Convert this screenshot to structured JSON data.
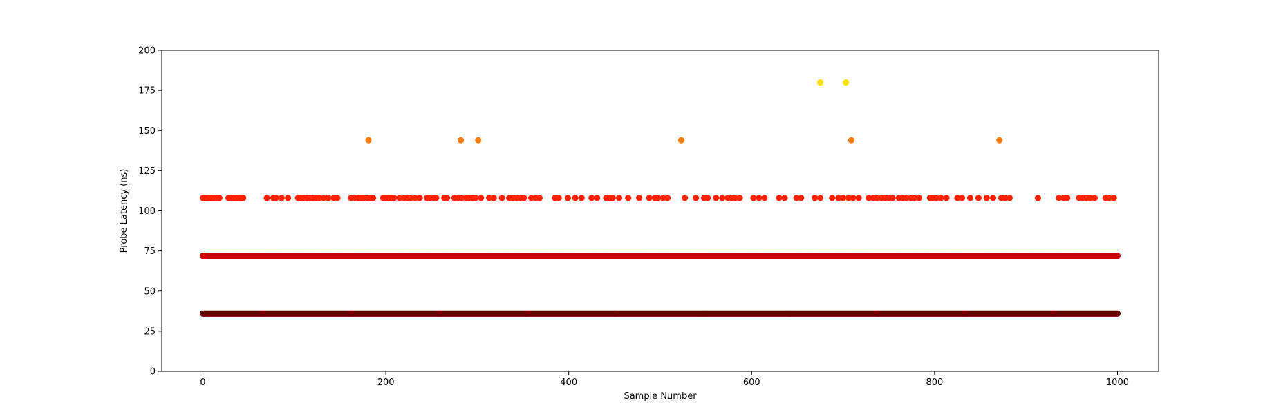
{
  "chart_data": {
    "type": "scatter",
    "title": "",
    "xlabel": "Sample Number",
    "ylabel": "Probe Latency (ns)",
    "xlim": [
      -45,
      1045
    ],
    "ylim": [
      0,
      200
    ],
    "xticks": [
      0,
      200,
      400,
      600,
      800,
      1000
    ],
    "yticks": [
      0,
      25,
      50,
      75,
      100,
      125,
      150,
      175,
      200
    ],
    "grid": false,
    "legend": "none",
    "series": [
      {
        "level": 36,
        "color": "#6b0000",
        "x_range": [
          0,
          1000
        ],
        "x": []
      },
      {
        "level": 72,
        "color": "#cc0000",
        "x_range": [
          0,
          1000
        ],
        "x": []
      },
      {
        "level": 108,
        "color": "#ff2200",
        "x": [
          0,
          2,
          4,
          6,
          9,
          12,
          15,
          18,
          28,
          31,
          34,
          37,
          40,
          42,
          44,
          70,
          77,
          80,
          86,
          93,
          104,
          107,
          110,
          114,
          117,
          120,
          124,
          127,
          132,
          137,
          143,
          147,
          162,
          166,
          170,
          173,
          176,
          180,
          183,
          186,
          197,
          200,
          203,
          206,
          209,
          215,
          220,
          224,
          227,
          232,
          237,
          245,
          248,
          252,
          255,
          264,
          267,
          275,
          279,
          283,
          288,
          291,
          295,
          298,
          304,
          313,
          318,
          327,
          335,
          339,
          343,
          347,
          351,
          359,
          364,
          368,
          385,
          389,
          399,
          407,
          414,
          425,
          431,
          441,
          445,
          448,
          455,
          465,
          477,
          488,
          494,
          497,
          503,
          508,
          527,
          539,
          548,
          552,
          561,
          568,
          574,
          578,
          582,
          587,
          602,
          608,
          614,
          630,
          636,
          649,
          654,
          669,
          675,
          688,
          695,
          700,
          706,
          711,
          717,
          728,
          733,
          737,
          742,
          746,
          750,
          754,
          761,
          765,
          769,
          774,
          778,
          783,
          795,
          798,
          802,
          807,
          813,
          825,
          830,
          839,
          848,
          857,
          864,
          873,
          877,
          882,
          913,
          936,
          941,
          945,
          958,
          962,
          966,
          970,
          975,
          987,
          991,
          996
        ]
      },
      {
        "level": 144,
        "color": "#ff7f0e",
        "x": [
          181,
          282,
          301,
          523,
          709,
          871
        ]
      },
      {
        "level": 180,
        "color": "#ffe100",
        "x": [
          675,
          703
        ]
      }
    ]
  }
}
